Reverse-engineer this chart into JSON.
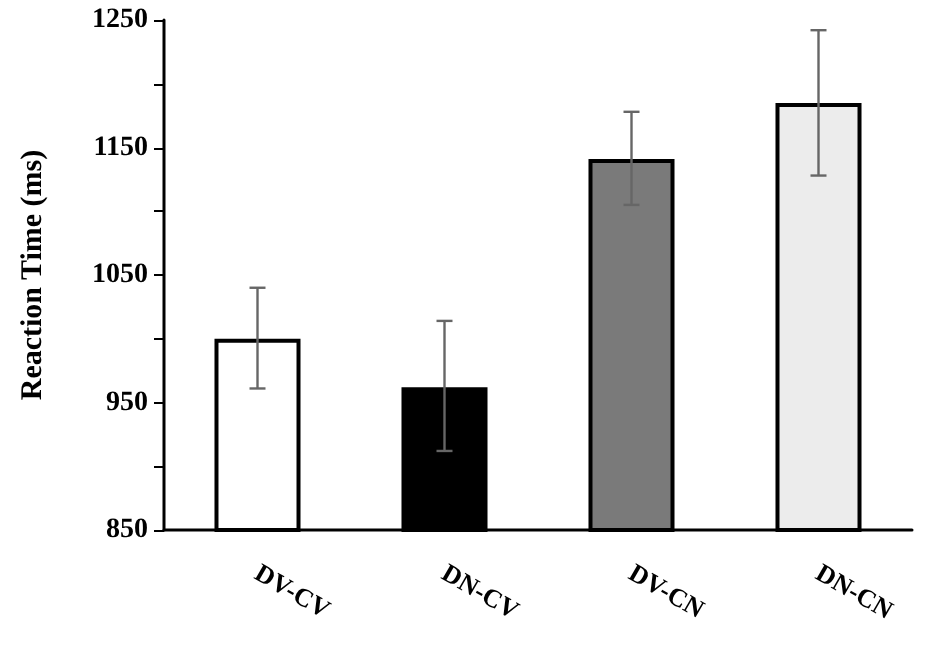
{
  "chart_data": {
    "type": "bar",
    "ylabel": "Reaction Time (ms)",
    "categories": [
      "DV-CV",
      "DN-CV",
      "DV-CN",
      "DN-CN"
    ],
    "values": [
      1000,
      962,
      1141,
      1185
    ],
    "colors": [
      "#ffffff",
      "#000000",
      "#7a7a7a",
      "#ececec"
    ],
    "errors": [
      [
        961,
        1040
      ],
      [
        912,
        1014
      ],
      [
        1105,
        1178
      ],
      [
        1128,
        1242
      ]
    ],
    "ylim": [
      850,
      1250
    ],
    "yticks": [
      850,
      {
        "value": 900,
        "label": null
      },
      950,
      {
        "value": 1000,
        "label": null
      },
      1050,
      {
        "value": 1100,
        "label": null
      },
      1150,
      {
        "value": 1200,
        "label": null
      },
      1250
    ]
  }
}
